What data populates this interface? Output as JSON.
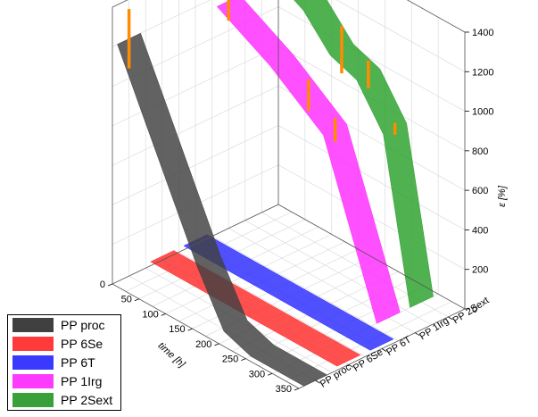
{
  "chart_data": {
    "type": "3d-ribbon",
    "xlabel": "time [h]",
    "zlabel": "ε [%]",
    "xlim": [
      0,
      350
    ],
    "zlim": [
      0,
      1400
    ],
    "x_ticks": [
      "0",
      "50",
      "100",
      "150",
      "200",
      "250",
      "300",
      "350"
    ],
    "z_ticks": [
      "0",
      "200",
      "400",
      "600",
      "800",
      "1000",
      "1200",
      "1400"
    ],
    "categories": [
      "PP proc",
      "PP 6Se",
      "PP 6T",
      "PP 1Irg",
      "PP 2Sext"
    ],
    "series": [
      {
        "name": "PP proc",
        "color": "#404040",
        "x": [
          0,
          50,
          100,
          150,
          200,
          250,
          300,
          350
        ],
        "y": [
          1200,
          900,
          600,
          300,
          50,
          0,
          0,
          0
        ],
        "error_points": [
          {
            "x": 0,
            "y": 1200,
            "err": 150
          }
        ]
      },
      {
        "name": "PP 6Se",
        "color": "#ff2a2a",
        "x": [
          0,
          50,
          100,
          150,
          200,
          250,
          300,
          350
        ],
        "y": [
          20,
          20,
          20,
          20,
          20,
          20,
          20,
          20
        ],
        "error_points": []
      },
      {
        "name": "PP 6T",
        "color": "#2a2aff",
        "x": [
          0,
          50,
          100,
          150,
          200,
          250,
          300,
          350
        ],
        "y": [
          20,
          20,
          20,
          20,
          20,
          20,
          20,
          20
        ],
        "error_points": []
      },
      {
        "name": "PP 1Irg",
        "color": "#ff2aff",
        "x": [
          0,
          100,
          150,
          200,
          250,
          300
        ],
        "y": [
          1150,
          1000,
          900,
          800,
          400,
          0
        ],
        "error_points": [
          {
            "x": 0,
            "y": 1150,
            "err": 100
          },
          {
            "x": 150,
            "y": 900,
            "err": 80
          },
          {
            "x": 200,
            "y": 800,
            "err": 60
          }
        ]
      },
      {
        "name": "PP 2Sext",
        "color": "#2aa02a",
        "x": [
          0,
          100,
          150,
          200,
          250,
          300
        ],
        "y": [
          1350,
          1200,
          1050,
          1000,
          800,
          0
        ],
        "error_points": [
          {
            "x": 0,
            "y": 1350,
            "err": 150
          },
          {
            "x": 150,
            "y": 1050,
            "err": 120
          },
          {
            "x": 200,
            "y": 1000,
            "err": 70
          },
          {
            "x": 250,
            "y": 800,
            "err": 30
          }
        ]
      }
    ],
    "legend": {
      "position": "bottom-left",
      "items": [
        "PP proc",
        "PP 6Se",
        "PP 6T",
        "PP 1Irg",
        "PP 2Sext"
      ]
    },
    "grid": true
  }
}
